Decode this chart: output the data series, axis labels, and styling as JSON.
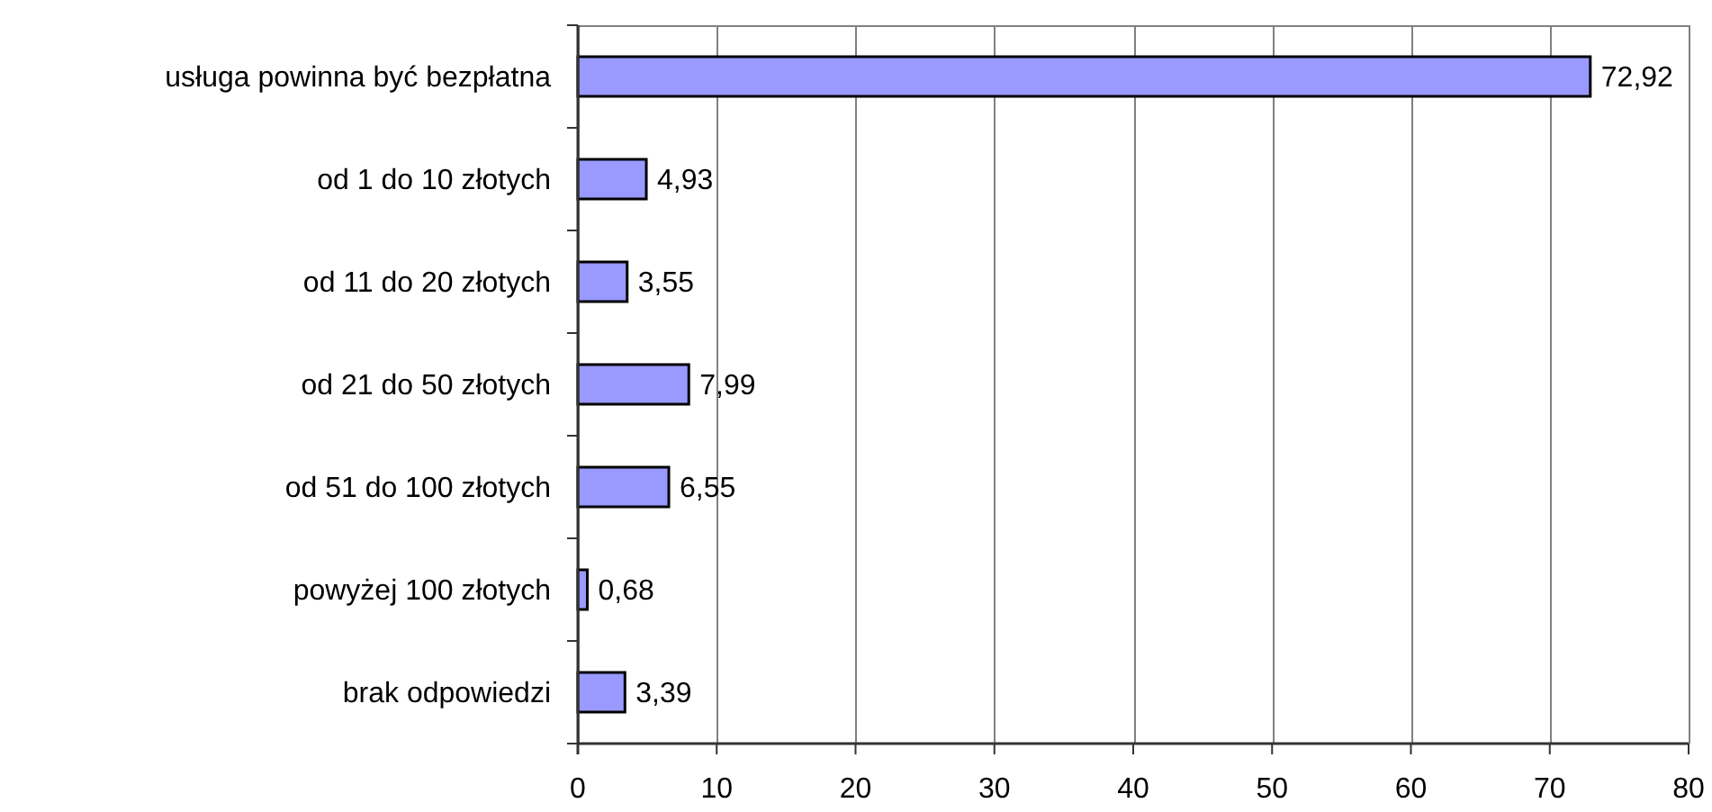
{
  "chart_data": {
    "type": "bar",
    "orientation": "horizontal",
    "categories": [
      "usługa powinna być bezpłatna",
      "od 1 do 10 złotych",
      "od 11 do 20 złotych",
      "od 21 do 50 złotych",
      "od 51 do 100 złotych",
      "powyżej 100 złotych",
      "brak odpowiedzi"
    ],
    "values": [
      72.92,
      4.93,
      3.55,
      7.99,
      6.55,
      0.68,
      3.39
    ],
    "value_labels": [
      "72,92",
      "4,93",
      "3,55",
      "7,99",
      "6,55",
      "0,68",
      "3,39"
    ],
    "color": "#9999ff",
    "xlim": [
      0,
      80
    ],
    "xticks": [
      0,
      10,
      20,
      30,
      40,
      50,
      60,
      70,
      80
    ],
    "grid": "x"
  }
}
